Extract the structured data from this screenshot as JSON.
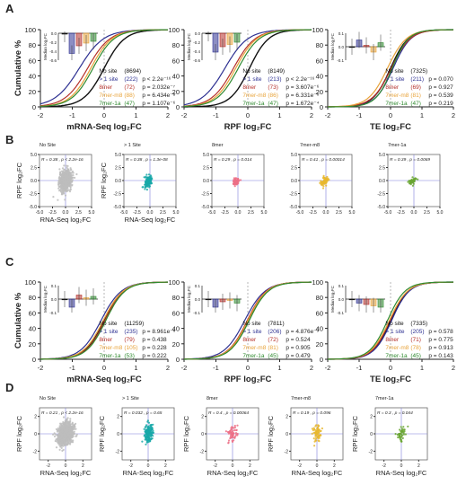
{
  "figure": {
    "panel_letters": [
      "A",
      "B",
      "C",
      "D"
    ]
  },
  "colors": {
    "nosite": "#111111",
    "gt1": "#2e3192",
    "8mer": "#b5302a",
    "7m8": "#e8a33a",
    "7a1": "#2f8a2f",
    "scatter_gray": "#bdbdbd",
    "scatter_teal": "#17a8a8",
    "scatter_pink": "#ec6f86",
    "scatter_yellow": "#e8b72e",
    "scatter_green": "#6aa632",
    "refline": "#7f7fd9"
  },
  "chart_data": [
    {
      "panel": "A",
      "type": "line",
      "ylabel": "Cumulative %",
      "xlabel": "mRNA-Seq log₂FC",
      "xlim": [
        -2,
        2
      ],
      "ylim": [
        0,
        100
      ],
      "xticks": [
        "-2",
        "-1",
        "0",
        "1",
        "2"
      ],
      "yticks": [
        "0",
        "20",
        "40",
        "60",
        "80",
        "100"
      ],
      "series": [
        {
          "key": "nosite",
          "label": "No site",
          "n": "(8694)",
          "p": "",
          "mid": 0.0,
          "spread": 0.32
        },
        {
          "key": "gt1",
          "label": "> 1 site",
          "n": "(222)",
          "p": "p < 2.2e⁻¹⁶",
          "mid": -0.78,
          "spread": 0.38
        },
        {
          "key": "8mer",
          "label": "8mer",
          "n": "(72)",
          "p": "p = 2.032e⁻⁷",
          "mid": -0.52,
          "spread": 0.35
        },
        {
          "key": "7m8",
          "label": "7mer-m8",
          "n": "(88)",
          "p": "p = 6.434e⁻⁸",
          "mid": -0.42,
          "spread": 0.33
        },
        {
          "key": "7a1",
          "label": "7mer-1a",
          "n": "(47)",
          "p": "p = 1.107e⁻⁶",
          "mid": -0.35,
          "spread": 0.33
        }
      ],
      "inset": {
        "ylabel": "Median log₂FC",
        "ylim": [
          -0.6,
          0
        ],
        "yticks": [
          "0.0",
          "-0.2",
          "-0.4",
          "-0.6"
        ],
        "values": [
          -0.02,
          -0.45,
          -0.28,
          -0.22,
          -0.18
        ]
      }
    },
    {
      "panel": "A",
      "type": "line",
      "ylabel": "",
      "xlabel": "RPF log₂FC",
      "xlim": [
        -2,
        2
      ],
      "ylim": [
        0,
        100
      ],
      "xticks": [
        "-2",
        "-1",
        "0",
        "1",
        "2"
      ],
      "yticks": [
        "0",
        "20",
        "40",
        "60",
        "80",
        "100"
      ],
      "series": [
        {
          "key": "nosite",
          "label": "No site",
          "n": "(8149)",
          "p": "",
          "mid": 0.05,
          "spread": 0.3
        },
        {
          "key": "gt1",
          "label": "> 1 site",
          "n": "(213)",
          "p": "p < 2.2e⁻¹⁶",
          "mid": -0.72,
          "spread": 0.36
        },
        {
          "key": "8mer",
          "label": "8mer",
          "n": "(73)",
          "p": "p = 3.607e⁻⁶",
          "mid": -0.45,
          "spread": 0.34
        },
        {
          "key": "7m8",
          "label": "7mer-m8",
          "n": "(86)",
          "p": "p = 6.331e⁻⁶",
          "mid": -0.38,
          "spread": 0.33
        },
        {
          "key": "7a1",
          "label": "7mer-1a",
          "n": "(47)",
          "p": "p = 1.672e⁻⁴",
          "mid": -0.3,
          "spread": 0.33
        }
      ],
      "inset": {
        "ylabel": "Median log₂FC",
        "ylim": [
          -0.6,
          0
        ],
        "yticks": [
          "0.0",
          "-0.2",
          "-0.4",
          "-0.6"
        ],
        "values": [
          0.0,
          -0.42,
          -0.3,
          -0.25,
          -0.2
        ]
      }
    },
    {
      "panel": "A",
      "type": "line",
      "ylabel": "",
      "xlabel": "TE log₂FC",
      "xlim": [
        -2,
        2
      ],
      "ylim": [
        0,
        100
      ],
      "xticks": [
        "-2",
        "-1",
        "0",
        "1",
        "2"
      ],
      "yticks": [
        "0",
        "20",
        "40",
        "60",
        "80",
        "100"
      ],
      "series": [
        {
          "key": "nosite",
          "label": "No site",
          "n": "(7325)",
          "p": "",
          "mid": 0.0,
          "spread": 0.28
        },
        {
          "key": "gt1",
          "label": "> 1 site",
          "n": "(211)",
          "p": "p = 0.070",
          "mid": 0.08,
          "spread": 0.28
        },
        {
          "key": "8mer",
          "label": "8mer",
          "n": "(69)",
          "p": "p = 0.927",
          "mid": 0.02,
          "spread": 0.3
        },
        {
          "key": "7m8",
          "label": "7mer-m8",
          "n": "(81)",
          "p": "p = 0.539",
          "mid": -0.1,
          "spread": 0.3
        },
        {
          "key": "7a1",
          "label": "7mer-1a",
          "n": "(47)",
          "p": "p = 0.219",
          "mid": 0.05,
          "spread": 0.26
        }
      ],
      "inset": {
        "ylabel": "Median log₂FC",
        "ylim": [
          -0.1,
          0.1
        ],
        "yticks": [
          "0.1",
          "0.0",
          "-0.1"
        ],
        "values": [
          0.0,
          0.05,
          0.01,
          -0.04,
          0.03
        ]
      }
    },
    {
      "panel": "B",
      "type": "scatter",
      "title": "No Site",
      "stat": "R = 0.38 , p < 2.2e-16",
      "xlabel": "RNA-Seq log₂FC",
      "ylabel": "RPF log₂FC",
      "xlim": [
        -5,
        5
      ],
      "ylim": [
        -5,
        5
      ],
      "xticks": [
        "-5.0",
        "-2.5",
        "0.0",
        "2.5",
        "5.0"
      ],
      "yticks": [
        "5.0",
        "2.5",
        "0.0",
        "-2.5",
        "-5.0"
      ],
      "color_key": "scatter_gray",
      "n_points": 900,
      "cx": 0,
      "cy": 0,
      "sx": 0.55,
      "sy": 0.9
    },
    {
      "panel": "B",
      "type": "scatter",
      "title": "> 1 Site",
      "stat": "R = 0.38 , p = 1.3e-08",
      "xlabel": "RNA-Seq log₂FC",
      "ylabel": "RPF log₂FC",
      "xlim": [
        -5,
        5
      ],
      "ylim": [
        -5,
        5
      ],
      "xticks": [
        "-5.0",
        "-2.5",
        "0.0",
        "2.5",
        "5.0"
      ],
      "yticks": [
        "5.0",
        "2.5",
        "0.0",
        "-2.5",
        "-5.0"
      ],
      "color_key": "scatter_teal",
      "n_points": 140,
      "cx": -0.4,
      "cy": -0.3,
      "sx": 0.35,
      "sy": 0.5
    },
    {
      "panel": "B",
      "type": "scatter",
      "title": "8mer",
      "stat": "R = 0.29 , p = 0.014",
      "xlabel": "",
      "ylabel": "",
      "xlim": [
        -5,
        5
      ],
      "ylim": [
        -5,
        5
      ],
      "xticks": [
        "-5.0",
        "-2.5",
        "0.0",
        "2.5",
        "5.0"
      ],
      "yticks": [
        "5.0",
        "2.5",
        "0.0",
        "-2.5",
        "-5.0"
      ],
      "color_key": "scatter_pink",
      "n_points": 60,
      "cx": -0.3,
      "cy": -0.2,
      "sx": 0.3,
      "sy": 0.35
    },
    {
      "panel": "B",
      "type": "scatter",
      "title": "7mer-m8",
      "stat": "R = 0.41 , p = 0.00014",
      "xlabel": "",
      "ylabel": "",
      "xlim": [
        -5,
        5
      ],
      "ylim": [
        -5,
        5
      ],
      "xticks": [
        "-5.0",
        "-2.5",
        "0.0",
        "2.5",
        "5.0"
      ],
      "yticks": [
        "5.0",
        "2.5",
        "0.0",
        "-2.5",
        "-5.0"
      ],
      "color_key": "scatter_yellow",
      "n_points": 70,
      "cx": -0.3,
      "cy": -0.2,
      "sx": 0.35,
      "sy": 0.4
    },
    {
      "panel": "B",
      "type": "scatter",
      "title": "7mer-1a",
      "stat": "R = 0.39 , p = 0.0069",
      "xlabel": "",
      "ylabel": "",
      "xlim": [
        -5,
        5
      ],
      "ylim": [
        -5,
        5
      ],
      "xticks": [
        "-5.0",
        "-2.5",
        "0.0",
        "2.5",
        "5.0"
      ],
      "yticks": [
        "5.0",
        "2.5",
        "0.0",
        "-2.5",
        "-5.0"
      ],
      "color_key": "scatter_green",
      "n_points": 45,
      "cx": -0.3,
      "cy": -0.1,
      "sx": 0.35,
      "sy": 0.3
    },
    {
      "panel": "C",
      "type": "line",
      "ylabel": "Cumulative %",
      "xlabel": "mRNA-Seq log₂FC",
      "xlim": [
        -2,
        2
      ],
      "ylim": [
        0,
        100
      ],
      "xticks": [
        "-2",
        "-1",
        "0",
        "1",
        "2"
      ],
      "yticks": [
        "0",
        "20",
        "40",
        "60",
        "80",
        "100"
      ],
      "series": [
        {
          "key": "nosite",
          "label": "No site",
          "n": "(11259)",
          "p": "",
          "mid": 0.0,
          "spread": 0.3
        },
        {
          "key": "gt1",
          "label": "> 1 site",
          "n": "(235)",
          "p": "p = 8.961e⁻⁶",
          "mid": -0.1,
          "spread": 0.32
        },
        {
          "key": "8mer",
          "label": "8mer",
          "n": "(79)",
          "p": "p = 0.438",
          "mid": 0.02,
          "spread": 0.3
        },
        {
          "key": "7m8",
          "label": "7mer-m8",
          "n": "(105)",
          "p": "p = 0.228",
          "mid": -0.03,
          "spread": 0.31
        },
        {
          "key": "7a1",
          "label": "7mer-1a",
          "n": "(53)",
          "p": "p = 0.222",
          "mid": 0.05,
          "spread": 0.3
        }
      ],
      "inset": {
        "ylabel": "Median log₂FC",
        "ylim": [
          -0.1,
          0.1
        ],
        "yticks": [
          "0.1",
          "0.0",
          "-0.1"
        ],
        "values": [
          0.0,
          -0.06,
          0.03,
          0.01,
          0.02
        ]
      }
    },
    {
      "panel": "C",
      "type": "line",
      "ylabel": "",
      "xlabel": "RPF log₂FC",
      "xlim": [
        -2,
        2
      ],
      "ylim": [
        0,
        100
      ],
      "xticks": [
        "-2",
        "-1",
        "0",
        "1",
        "2"
      ],
      "yticks": [
        "0",
        "20",
        "40",
        "60",
        "80",
        "100"
      ],
      "series": [
        {
          "key": "nosite",
          "label": "No site",
          "n": "(7811)",
          "p": "",
          "mid": 0.0,
          "spread": 0.3
        },
        {
          "key": "gt1",
          "label": "> 1 site",
          "n": "(206)",
          "p": "p = 4.876e⁻³",
          "mid": -0.1,
          "spread": 0.32
        },
        {
          "key": "8mer",
          "label": "8mer",
          "n": "(72)",
          "p": "p = 0.524",
          "mid": -0.02,
          "spread": 0.3
        },
        {
          "key": "7m8",
          "label": "7mer-m8",
          "n": "(81)",
          "p": "p = 0.905",
          "mid": 0.0,
          "spread": 0.3
        },
        {
          "key": "7a1",
          "label": "7mer-1a",
          "n": "(45)",
          "p": "p = 0.479",
          "mid": 0.04,
          "spread": 0.3
        }
      ],
      "inset": {
        "ylabel": "Median log₂FC",
        "ylim": [
          -0.1,
          0.1
        ],
        "yticks": [
          "0.1",
          "0.0",
          "-0.1"
        ],
        "values": [
          0.0,
          -0.06,
          -0.02,
          -0.01,
          -0.03
        ]
      }
    },
    {
      "panel": "C",
      "type": "line",
      "ylabel": "",
      "xlabel": "TE log₂FC",
      "xlim": [
        -2,
        2
      ],
      "ylim": [
        0,
        100
      ],
      "xticks": [
        "-2",
        "-1",
        "0",
        "1",
        "2"
      ],
      "yticks": [
        "0",
        "20",
        "40",
        "60",
        "80",
        "100"
      ],
      "series": [
        {
          "key": "nosite",
          "label": "No site",
          "n": "(7335)",
          "p": "",
          "mid": 0.0,
          "spread": 0.28
        },
        {
          "key": "gt1",
          "label": "> 1 site",
          "n": "(205)",
          "p": "p = 0.578",
          "mid": 0.03,
          "spread": 0.28
        },
        {
          "key": "8mer",
          "label": "8mer",
          "n": "(71)",
          "p": "p = 0.775",
          "mid": -0.02,
          "spread": 0.28
        },
        {
          "key": "7m8",
          "label": "7mer-m8",
          "n": "(78)",
          "p": "p = 0.913",
          "mid": -0.04,
          "spread": 0.29
        },
        {
          "key": "7a1",
          "label": "7mer-1a",
          "n": "(45)",
          "p": "p = 0.143",
          "mid": -0.1,
          "spread": 0.28
        }
      ],
      "inset": {
        "ylabel": "Median log₂FC",
        "ylim": [
          -0.1,
          0.1
        ],
        "yticks": [
          "0.1",
          "0.0",
          "-0.1"
        ],
        "values": [
          0.0,
          -0.03,
          -0.04,
          -0.05,
          -0.06
        ]
      }
    },
    {
      "panel": "D",
      "type": "scatter",
      "title": "No Site",
      "stat": "R = 0.21 , p < 2.2e-16",
      "xlabel": "RNA-Seq log₂FC",
      "ylabel": "RPF log₂FC",
      "xlim": [
        -3,
        3
      ],
      "ylim": [
        -3,
        3
      ],
      "xticks": [
        "-2",
        "0",
        "2"
      ],
      "yticks": [
        "2",
        "0",
        "-2"
      ],
      "color_key": "scatter_gray",
      "n_points": 900,
      "cx": 0,
      "cy": 0,
      "sx": 0.45,
      "sy": 0.6
    },
    {
      "panel": "D",
      "type": "scatter",
      "title": "> 1 Site",
      "stat": "R = 0.032 , p = 0.65",
      "xlabel": "RNA-Seq log₂FC",
      "ylabel": "RPF log₂FC",
      "xlim": [
        -3,
        3
      ],
      "ylim": [
        -3,
        3
      ],
      "xticks": [
        "-2",
        "0",
        "2"
      ],
      "yticks": [
        "2",
        "0",
        "-2"
      ],
      "color_key": "scatter_teal",
      "n_points": 150,
      "cx": 0,
      "cy": 0,
      "sx": 0.25,
      "sy": 0.55
    },
    {
      "panel": "D",
      "type": "scatter",
      "title": "8mer",
      "stat": "R = 0.4 , p = 0.00064",
      "xlabel": "RNA-Seq log₂FC",
      "ylabel": "RPF log₂FC",
      "xlim": [
        -3,
        3
      ],
      "ylim": [
        -3,
        3
      ],
      "xticks": [
        "-2",
        "0",
        "2"
      ],
      "yticks": [
        "2",
        "0",
        "-2"
      ],
      "color_key": "scatter_pink",
      "n_points": 60,
      "cx": 0,
      "cy": 0,
      "sx": 0.25,
      "sy": 0.5
    },
    {
      "panel": "D",
      "type": "scatter",
      "title": "7mer-m8",
      "stat": "R = 0.19 , p = 0.096",
      "xlabel": "RNA-Seq log₂FC",
      "ylabel": "RPF log₂FC",
      "xlim": [
        -3,
        3
      ],
      "ylim": [
        -3,
        3
      ],
      "xticks": [
        "-2",
        "0",
        "2"
      ],
      "yticks": [
        "2",
        "0",
        "-2"
      ],
      "color_key": "scatter_yellow",
      "n_points": 70,
      "cx": 0,
      "cy": 0,
      "sx": 0.25,
      "sy": 0.55
    },
    {
      "panel": "D",
      "type": "scatter",
      "title": "7mer-1a",
      "stat": "R = 0.3 , p = 0.044",
      "xlabel": "RNA-Seq log₂FC",
      "ylabel": "RPF log₂FC",
      "xlim": [
        -3,
        3
      ],
      "ylim": [
        -3,
        3
      ],
      "xticks": [
        "-2",
        "0",
        "2"
      ],
      "yticks": [
        "2",
        "0",
        "-2"
      ],
      "color_key": "scatter_green",
      "n_points": 45,
      "cx": 0,
      "cy": 0,
      "sx": 0.25,
      "sy": 0.45
    }
  ]
}
